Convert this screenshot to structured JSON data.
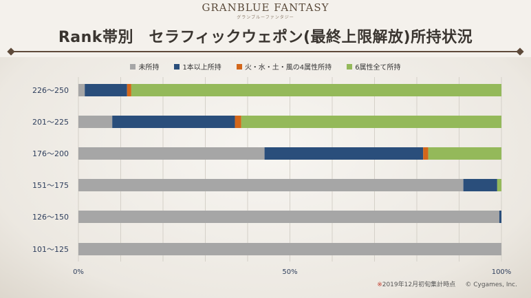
{
  "header": {
    "logo": "GRANBLUE FANTASY",
    "logo_sub": "グランブルーファンタジー",
    "title": "Rank帯別　セラフィックウェポン(最終上限解放)所持状況"
  },
  "footer": {
    "note_mark": "※",
    "note": "2019年12月初旬集計時点",
    "copyright": "© Cygames, Inc."
  },
  "colors": {
    "none": "#a6a6a6",
    "one_plus": "#2a4e7b",
    "four_elem": "#d3671b",
    "six_elem": "#94b95a"
  },
  "chart_data": {
    "type": "bar",
    "orientation": "horizontal",
    "stacked": true,
    "normalized": true,
    "title": "Rank帯別　セラフィックウェポン(最終上限解放)所持状況",
    "categories": [
      "226〜250",
      "201〜225",
      "176〜200",
      "151〜175",
      "126〜150",
      "101〜125"
    ],
    "series": [
      {
        "name": "未所持",
        "color": "#a6a6a6",
        "values": [
          1.5,
          8,
          44,
          91,
          99.5,
          100
        ]
      },
      {
        "name": "1本以上所持",
        "color": "#2a4e7b",
        "values": [
          10,
          29,
          37.5,
          8,
          0.5,
          0
        ]
      },
      {
        "name": "火・水・土・風の4属性所持",
        "color": "#d3671b",
        "values": [
          1,
          1.5,
          1.2,
          0,
          0,
          0
        ]
      },
      {
        "name": "6属性全て所持",
        "color": "#94b95a",
        "values": [
          87.5,
          61.5,
          17.3,
          1,
          0,
          0
        ]
      }
    ],
    "x_ticks": [
      "0%",
      "50%",
      "100%"
    ],
    "xlim": [
      0,
      100
    ],
    "xlabel": "",
    "ylabel": "",
    "legend_position": "top",
    "grid": true
  }
}
